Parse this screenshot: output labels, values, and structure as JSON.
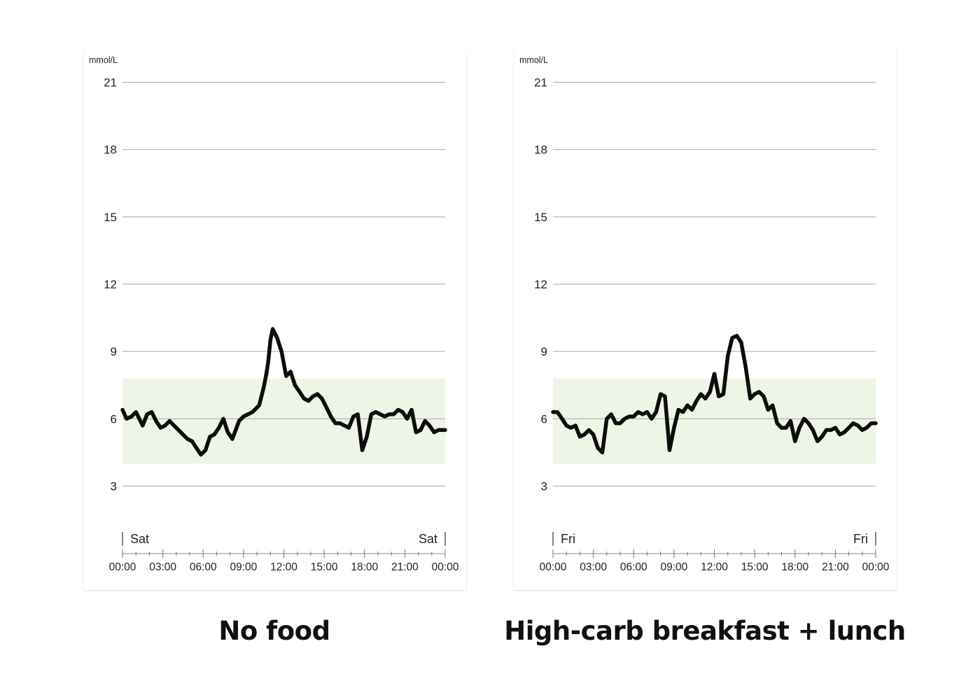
{
  "chart_data": [
    {
      "type": "line",
      "caption": "No food",
      "unit_label": "mmol/L",
      "y_ticks": [
        3,
        6,
        9,
        12,
        15,
        18,
        21
      ],
      "ylim": [
        0,
        21
      ],
      "x_ticks": [
        "00:00",
        "03:00",
        "06:00",
        "09:00",
        "12:00",
        "15:00",
        "18:00",
        "21:00",
        "00:00"
      ],
      "day_start": "Sat",
      "day_end": "Sat",
      "target_range": [
        4.0,
        7.8
      ],
      "grid": true,
      "colors": {
        "line": "#0d0d0d",
        "target": "#eef5e6",
        "grid": "#a9a9a9"
      },
      "series": [
        {
          "x": [
            0.0,
            0.3,
            0.67,
            1.0,
            1.5,
            1.83,
            2.17,
            2.5,
            2.83,
            3.17,
            3.5,
            4.0,
            4.5,
            4.83,
            5.17,
            5.5,
            5.83,
            6.17,
            6.5,
            6.83,
            7.17,
            7.5,
            7.83,
            8.17,
            8.67,
            9.0,
            9.33,
            9.67,
            9.83,
            10.17,
            10.5,
            10.7,
            10.83,
            11.0,
            11.17,
            11.5,
            11.83,
            12.17,
            12.5,
            12.83,
            13.17,
            13.5,
            13.83,
            14.17,
            14.5,
            14.83,
            15.17,
            15.5,
            15.83,
            16.17,
            16.5,
            16.83,
            17.17,
            17.5,
            17.83,
            18.17,
            18.5,
            18.83,
            19.17,
            19.5,
            19.83,
            20.17,
            20.5,
            20.83,
            21.17,
            21.5,
            21.83,
            22.17,
            22.5,
            22.83,
            23.17,
            23.5,
            24.0
          ],
          "values": [
            6.4,
            6.0,
            6.1,
            6.3,
            5.7,
            6.2,
            6.3,
            5.9,
            5.6,
            5.7,
            5.9,
            5.6,
            5.3,
            5.1,
            5.0,
            4.7,
            4.4,
            4.6,
            5.2,
            5.3,
            5.6,
            6.0,
            5.4,
            5.1,
            5.9,
            6.1,
            6.2,
            6.3,
            6.4,
            6.6,
            7.4,
            8.0,
            8.5,
            9.5,
            10.0,
            9.6,
            9.0,
            7.9,
            8.1,
            7.5,
            7.2,
            6.9,
            6.8,
            7.0,
            7.1,
            6.9,
            6.5,
            6.1,
            5.8,
            5.8,
            5.7,
            5.6,
            6.1,
            6.2,
            4.6,
            5.2,
            6.2,
            6.3,
            6.2,
            6.1,
            6.2,
            6.2,
            6.4,
            6.3,
            6.0,
            6.4,
            5.4,
            5.5,
            5.9,
            5.7,
            5.4,
            5.5,
            5.5
          ]
        }
      ]
    },
    {
      "type": "line",
      "caption": "High-carb breakfast + lunch",
      "unit_label": "mmol/L",
      "y_ticks": [
        3,
        6,
        9,
        12,
        15,
        18,
        21
      ],
      "ylim": [
        0,
        21
      ],
      "x_ticks": [
        "00:00",
        "03:00",
        "06:00",
        "09:00",
        "12:00",
        "15:00",
        "18:00",
        "21:00",
        "00:00"
      ],
      "day_start": "Fri",
      "day_end": "Fri",
      "target_range": [
        4.0,
        7.8
      ],
      "grid": true,
      "colors": {
        "line": "#0d0d0d",
        "target": "#eef5e6",
        "grid": "#a9a9a9"
      },
      "series": [
        {
          "x": [
            0.0,
            0.33,
            0.67,
            1.0,
            1.33,
            1.67,
            2.0,
            2.33,
            2.67,
            3.0,
            3.33,
            3.67,
            4.0,
            4.33,
            4.67,
            5.0,
            5.33,
            5.67,
            6.0,
            6.33,
            6.67,
            7.0,
            7.33,
            7.67,
            8.0,
            8.33,
            8.67,
            9.0,
            9.17,
            9.33,
            9.67,
            10.0,
            10.33,
            10.67,
            11.0,
            11.33,
            11.67,
            12.0,
            12.33,
            12.67,
            13.0,
            13.33,
            13.67,
            14.0,
            14.33,
            14.67,
            15.0,
            15.33,
            15.67,
            16.0,
            16.33,
            16.67,
            17.0,
            17.33,
            17.67,
            18.0,
            18.33,
            18.67,
            19.0,
            19.33,
            19.67,
            20.0,
            20.33,
            20.67,
            21.0,
            21.33,
            21.67,
            22.0,
            22.33,
            22.67,
            23.0,
            23.33,
            23.67,
            24.0
          ],
          "values": [
            6.3,
            6.3,
            6.0,
            5.7,
            5.6,
            5.7,
            5.2,
            5.3,
            5.5,
            5.3,
            4.7,
            4.5,
            6.0,
            6.2,
            5.8,
            5.8,
            6.0,
            6.1,
            6.1,
            6.3,
            6.2,
            6.3,
            6.0,
            6.3,
            7.1,
            7.0,
            4.6,
            5.6,
            6.0,
            6.4,
            6.3,
            6.6,
            6.4,
            6.8,
            7.1,
            6.9,
            7.2,
            8.0,
            7.0,
            7.1,
            8.8,
            9.6,
            9.7,
            9.4,
            8.3,
            6.9,
            7.1,
            7.2,
            7.0,
            6.4,
            6.6,
            5.8,
            5.6,
            5.6,
            5.9,
            5.0,
            5.6,
            6.0,
            5.8,
            5.5,
            5.0,
            5.2,
            5.5,
            5.5,
            5.6,
            5.3,
            5.4,
            5.6,
            5.8,
            5.7,
            5.5,
            5.6,
            5.8,
            5.8
          ]
        }
      ]
    }
  ]
}
